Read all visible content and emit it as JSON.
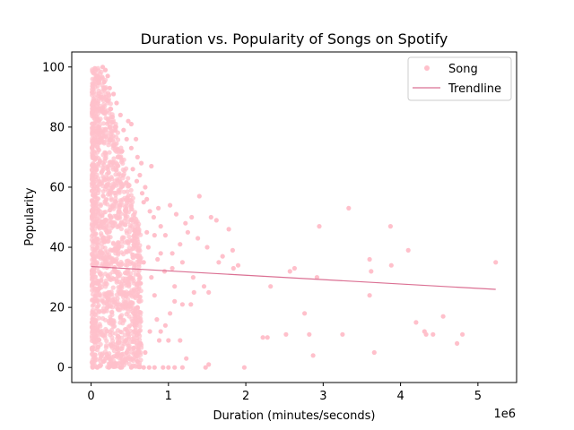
{
  "chart_data": {
    "type": "scatter",
    "title": "Duration vs. Popularity of Songs on Spotify",
    "xlabel": "Duration (minutes/seconds)",
    "ylabel": "Popularity",
    "x_offset_text": "1e6",
    "xlim": [
      -250000,
      5500000
    ],
    "ylim": [
      -5,
      105
    ],
    "x_ticks": [
      0,
      1000000,
      2000000,
      3000000,
      4000000,
      5000000
    ],
    "x_tick_labels": [
      "0",
      "1",
      "2",
      "3",
      "4",
      "5"
    ],
    "y_ticks": [
      0,
      20,
      40,
      60,
      80,
      100
    ],
    "y_tick_labels": [
      "0",
      "20",
      "40",
      "60",
      "80",
      "100"
    ],
    "grid": false,
    "legend_placement": "top-right",
    "colors": {
      "points": "#ffc0cb",
      "trendline": "#db7093"
    },
    "series": [
      {
        "name": "Song",
        "kind": "scatter",
        "points": [
          [
            150000,
            100
          ],
          [
            185000,
            99
          ],
          [
            215000,
            97
          ],
          [
            170000,
            95
          ],
          [
            240000,
            93
          ],
          [
            290000,
            91
          ],
          [
            200000,
            89
          ],
          [
            330000,
            88
          ],
          [
            255000,
            86
          ],
          [
            150000,
            85
          ],
          [
            380000,
            84
          ],
          [
            480000,
            82
          ],
          [
            520000,
            81
          ],
          [
            310000,
            80
          ],
          [
            420000,
            79
          ],
          [
            460000,
            76
          ],
          [
            580000,
            76
          ],
          [
            520000,
            73
          ],
          [
            400000,
            72
          ],
          [
            600000,
            70
          ],
          [
            650000,
            68
          ],
          [
            780000,
            67
          ],
          [
            540000,
            66
          ],
          [
            630000,
            64
          ],
          [
            590000,
            62
          ],
          [
            700000,
            60
          ],
          [
            660000,
            58
          ],
          [
            720000,
            56
          ],
          [
            680000,
            55
          ],
          [
            760000,
            52
          ],
          [
            810000,
            50
          ],
          [
            870000,
            53
          ],
          [
            1020000,
            54
          ],
          [
            1100000,
            51
          ],
          [
            1220000,
            48
          ],
          [
            1300000,
            50
          ],
          [
            1400000,
            57
          ],
          [
            1550000,
            50
          ],
          [
            1620000,
            49
          ],
          [
            1780000,
            46
          ],
          [
            1830000,
            39
          ],
          [
            1700000,
            37
          ],
          [
            1500000,
            40
          ],
          [
            1380000,
            43
          ],
          [
            1250000,
            45
          ],
          [
            1150000,
            41
          ],
          [
            960000,
            44
          ],
          [
            900000,
            38
          ],
          [
            860000,
            36
          ],
          [
            1050000,
            33
          ],
          [
            1180000,
            35
          ],
          [
            1320000,
            30
          ],
          [
            1460000,
            27
          ],
          [
            1520000,
            25
          ],
          [
            1650000,
            35
          ],
          [
            1840000,
            33
          ],
          [
            1900000,
            34
          ],
          [
            2320000,
            27
          ],
          [
            2570000,
            32
          ],
          [
            2630000,
            33
          ],
          [
            2950000,
            47
          ],
          [
            3330000,
            53
          ],
          [
            3600000,
            36
          ],
          [
            3620000,
            32
          ],
          [
            3600000,
            24
          ],
          [
            3870000,
            47
          ],
          [
            3880000,
            34
          ],
          [
            4100000,
            39
          ],
          [
            3660000,
            5
          ],
          [
            4200000,
            15
          ],
          [
            4310000,
            12
          ],
          [
            4330000,
            11
          ],
          [
            4420000,
            11
          ],
          [
            4550000,
            17
          ],
          [
            4730000,
            8
          ],
          [
            4800000,
            11
          ],
          [
            5230000,
            35
          ],
          [
            2920000,
            30
          ],
          [
            2760000,
            18
          ],
          [
            2820000,
            11
          ],
          [
            2870000,
            4
          ],
          [
            3250000,
            11
          ],
          [
            2220000,
            10
          ],
          [
            2280000,
            10
          ],
          [
            2520000,
            11
          ],
          [
            1980000,
            0
          ],
          [
            1520000,
            1
          ],
          [
            1480000,
            0
          ],
          [
            1290000,
            21
          ],
          [
            1330000,
            25
          ],
          [
            1180000,
            21
          ],
          [
            1080000,
            22
          ],
          [
            900000,
            12
          ],
          [
            1000000,
            9
          ],
          [
            1150000,
            9
          ],
          [
            1230000,
            3
          ],
          [
            1180000,
            0
          ],
          [
            1080000,
            0
          ],
          [
            1000000,
            0
          ],
          [
            930000,
            0
          ],
          [
            820000,
            0
          ],
          [
            750000,
            0
          ],
          [
            680000,
            0
          ],
          [
            600000,
            2
          ],
          [
            520000,
            0
          ],
          [
            460000,
            5
          ],
          [
            380000,
            0
          ],
          [
            300000,
            1
          ],
          [
            230000,
            0
          ],
          [
            160000,
            2
          ],
          [
            80000,
            0
          ],
          [
            20000,
            0
          ],
          [
            10000,
            15
          ],
          [
            15000,
            30
          ],
          [
            30000,
            42
          ],
          [
            20000,
            55
          ],
          [
            60000,
            66
          ],
          [
            80000,
            75
          ],
          [
            100000,
            80
          ],
          [
            120000,
            90
          ],
          [
            55000,
            48
          ],
          [
            40000,
            22
          ],
          [
            60000,
            10
          ],
          [
            35000,
            36
          ],
          [
            70000,
            28
          ],
          [
            780000,
            30
          ],
          [
            820000,
            24
          ],
          [
            850000,
            16
          ],
          [
            880000,
            9
          ],
          [
            960000,
            14
          ],
          [
            1020000,
            18
          ],
          [
            1080000,
            27
          ],
          [
            1050000,
            38
          ],
          [
            740000,
            40
          ],
          [
            720000,
            45
          ],
          [
            680000,
            35
          ],
          [
            640000,
            28
          ],
          [
            600000,
            20
          ],
          [
            560000,
            14
          ],
          [
            640000,
            8
          ],
          [
            700000,
            5
          ],
          [
            760000,
            12
          ],
          [
            820000,
            44
          ],
          [
            900000,
            47
          ],
          [
            950000,
            32
          ]
        ]
      },
      {
        "name": "Trendline",
        "kind": "line",
        "x": [
          0,
          5230000
        ],
        "y": [
          33.6,
          26.0
        ]
      }
    ]
  }
}
